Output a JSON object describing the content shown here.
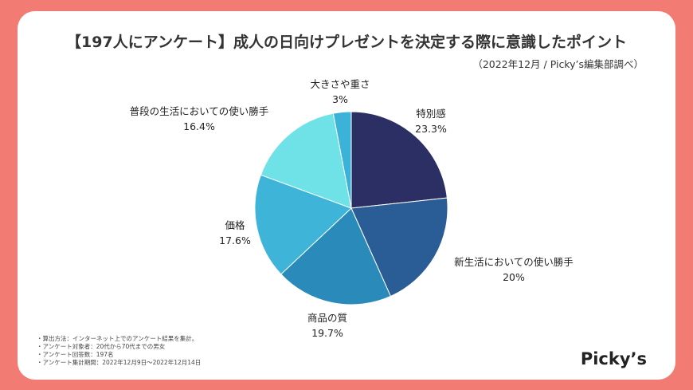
{
  "title": "【197人にアンケート】成人の日向けプレゼントを決定する際に意識したポイント",
  "source": "（2022年12月 / Picky’s編集部調べ）",
  "chart_data": {
    "type": "pie",
    "title": "【197人にアンケート】成人の日向けプレゼントを決定する際に意識したポイント",
    "categories": [
      "特別感",
      "新生活においての使い勝手",
      "商品の質",
      "価格",
      "普段の生活においての使い勝手",
      "大きさや重さ"
    ],
    "values": [
      23.3,
      20,
      19.7,
      17.6,
      16.4,
      3
    ],
    "value_labels": [
      "23.3%",
      "20%",
      "19.7%",
      "17.6%",
      "16.4%",
      "3%"
    ],
    "colors": [
      "#2c2f63",
      "#2a5c95",
      "#2a8bba",
      "#3db4d8",
      "#6ee2e6",
      "#3bb3d9"
    ],
    "start": "top",
    "direction": "clockwise"
  },
  "notes": [
    "・算出方法：インターネット上でのアンケート結果を集計。",
    "・アンケート対象者：20代から70代までの男女",
    "・アンケート回答数：197名",
    "・アンケート集計期間：2022年12月9日〜2022年12月14日"
  ],
  "logo": "Picky’s",
  "colors": {
    "background": "#f27b73",
    "card": "#ffffff"
  }
}
